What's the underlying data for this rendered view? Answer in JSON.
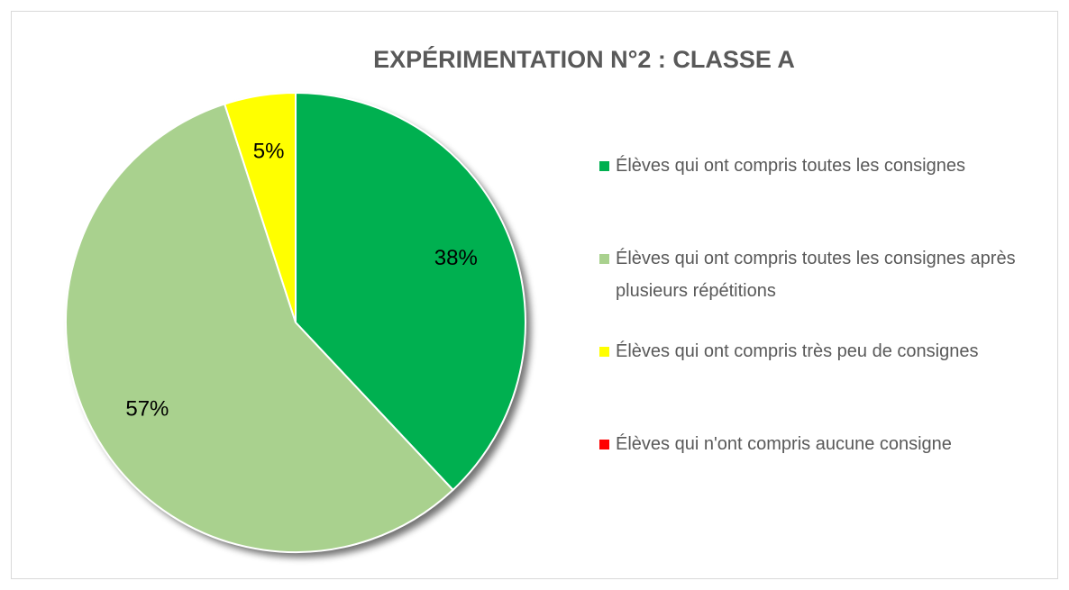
{
  "chart_data": {
    "type": "pie",
    "title": "EXPÉRIMENTATION N°2 : CLASSE A",
    "categories": [
      "Élèves qui ont compris toutes les consignes",
      "Élèves qui ont compris toutes les consignes après plusieurs répétitions",
      "Élèves qui ont compris très peu de consignes",
      "Élèves qui n'ont compris aucune consigne"
    ],
    "values": [
      38,
      57,
      5,
      0
    ],
    "value_labels": [
      "38%",
      "57%",
      "5%",
      null
    ],
    "colors": [
      "#00b050",
      "#a9d18e",
      "#ffff00",
      "#ff0000"
    ],
    "legend": "right"
  }
}
